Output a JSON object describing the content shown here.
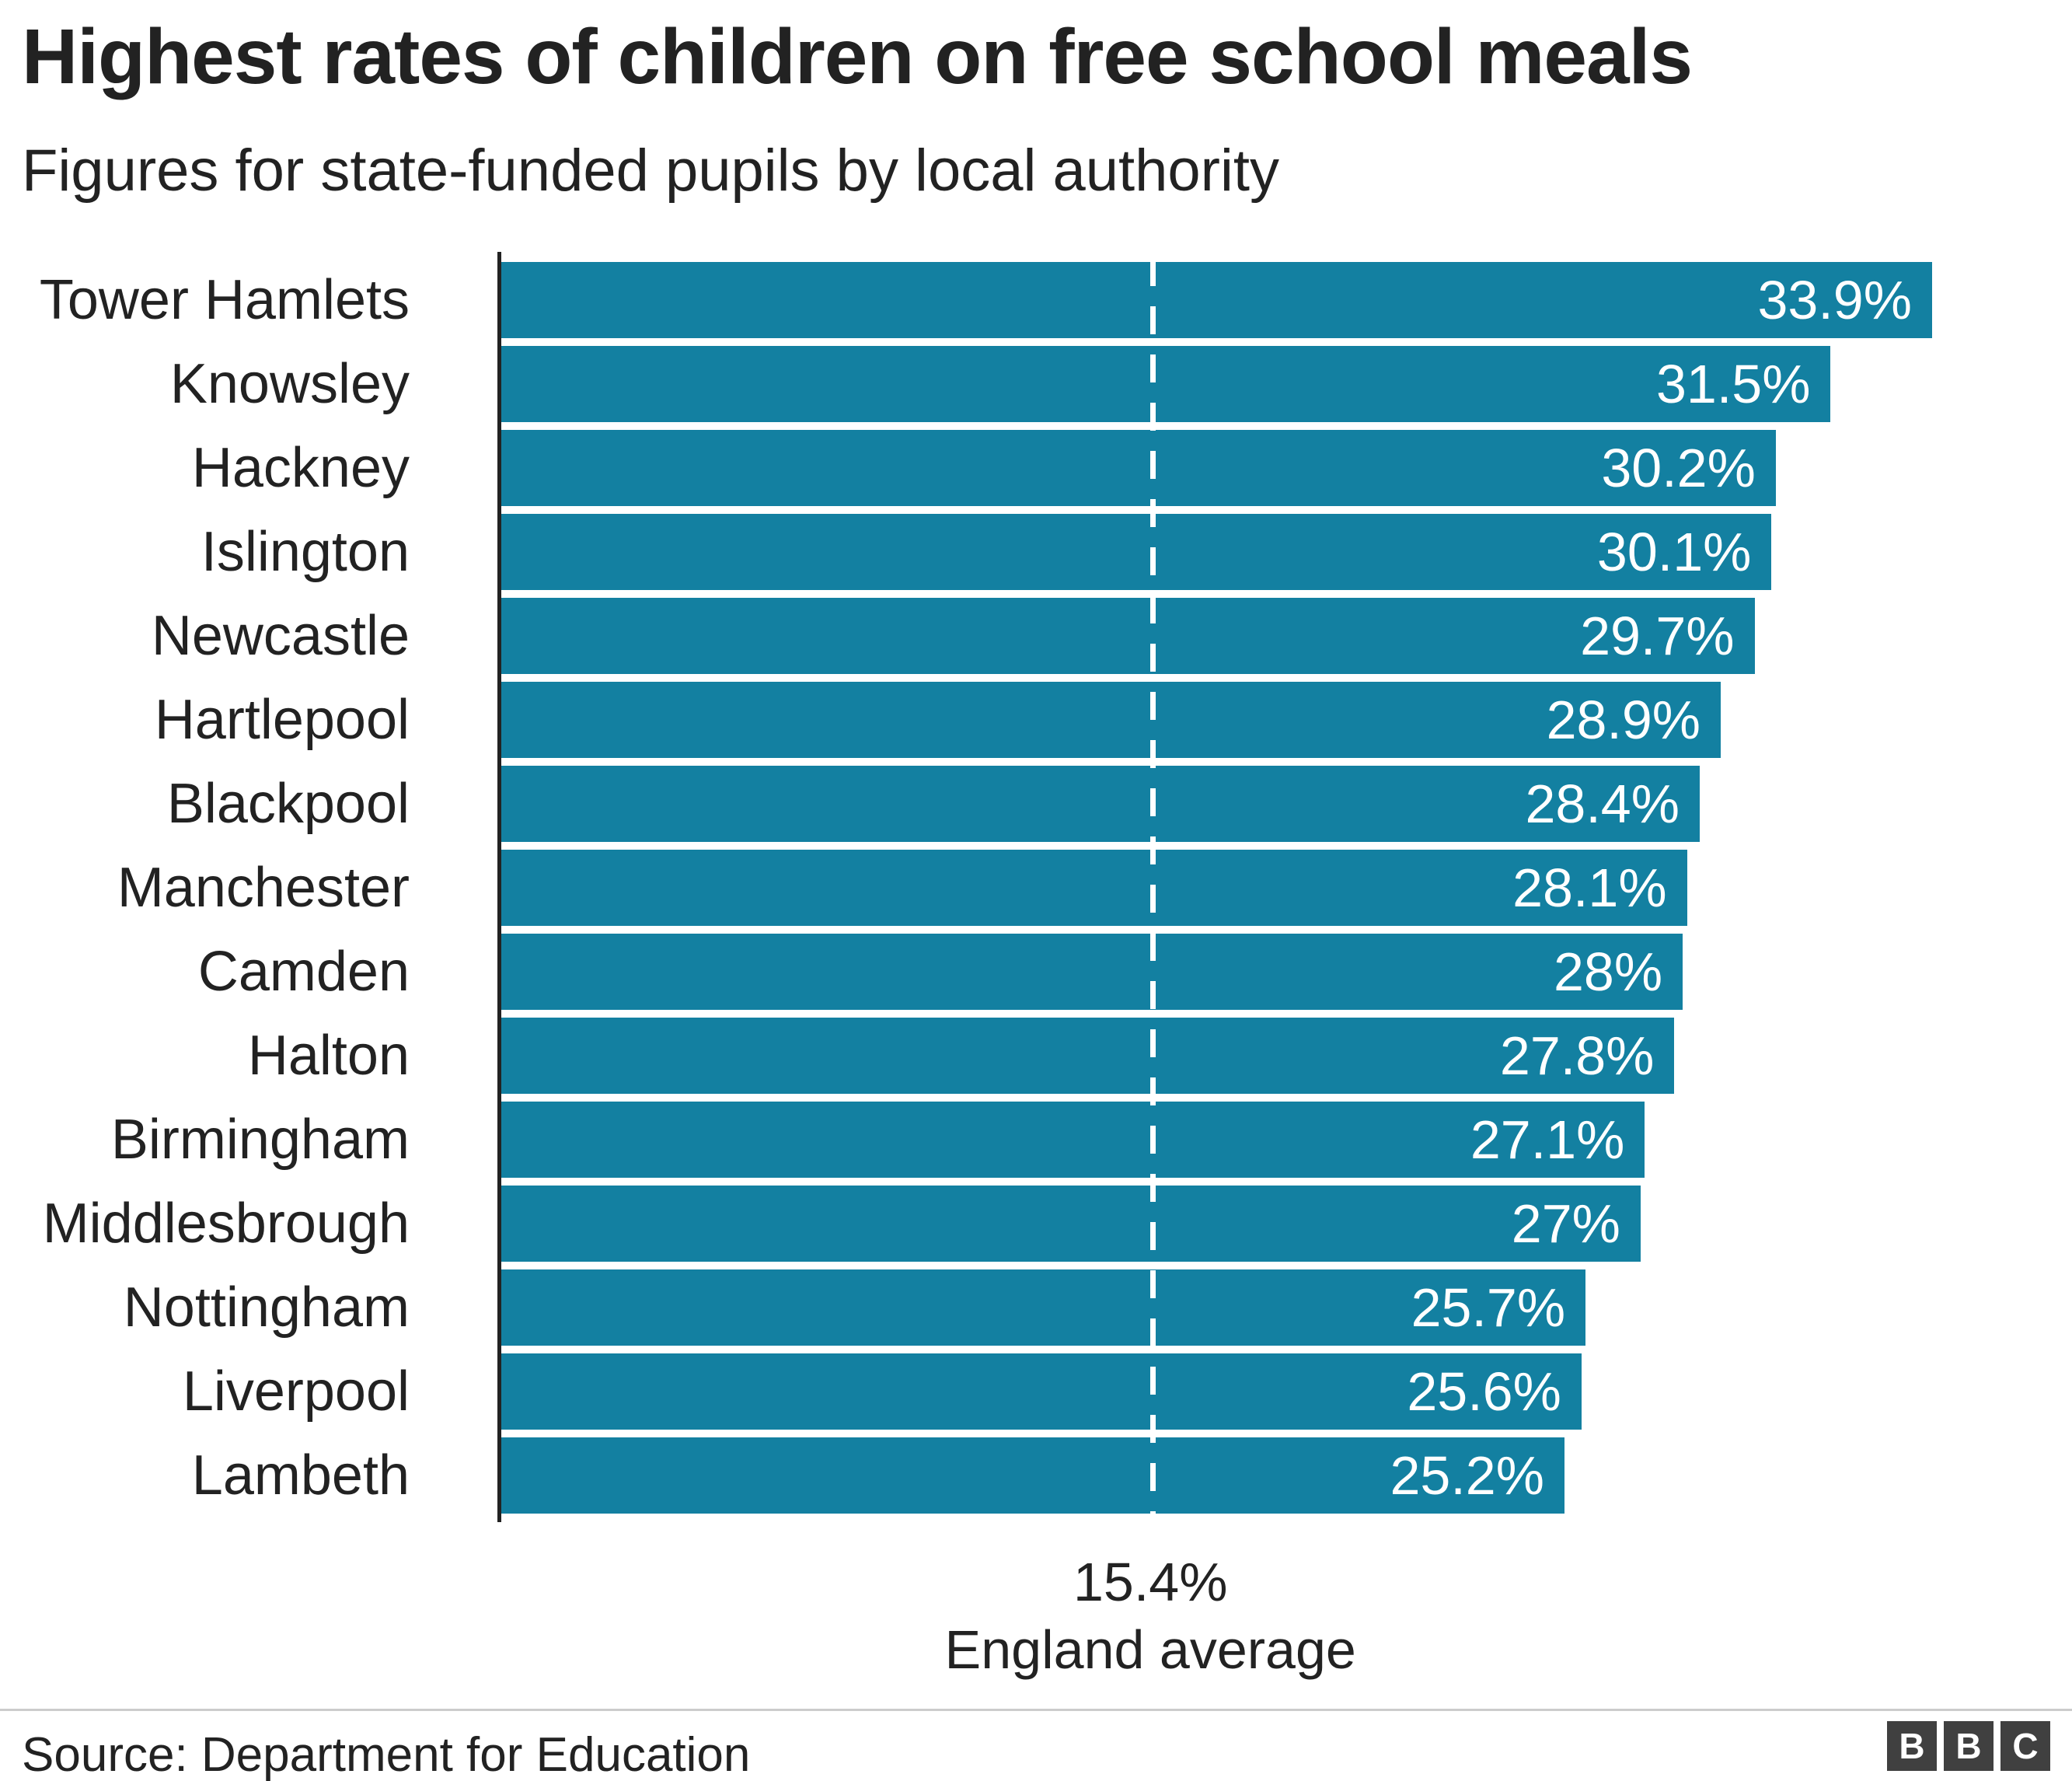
{
  "header": {
    "title": "Highest rates of children on free school meals",
    "subtitle": "Figures for state-funded pupils by local authority"
  },
  "chart_data": {
    "type": "bar",
    "orientation": "horizontal",
    "title": "Highest rates of children on free school meals",
    "subtitle": "Figures for state-funded pupils by local authority",
    "categories": [
      "Tower Hamlets",
      "Knowsley",
      "Hackney",
      "Islington",
      "Newcastle",
      "Hartlepool",
      "Blackpool",
      "Manchester",
      "Camden",
      "Halton",
      "Birmingham",
      "Middlesbrough",
      "Nottingham",
      "Liverpool",
      "Lambeth"
    ],
    "values": [
      33.9,
      31.5,
      30.2,
      30.1,
      29.7,
      28.9,
      28.4,
      28.1,
      28,
      27.8,
      27.1,
      27,
      25.7,
      25.6,
      25.2
    ],
    "value_labels": [
      "33.9%",
      "31.5%",
      "30.2%",
      "30.1%",
      "29.7%",
      "28.9%",
      "28.4%",
      "28.1%",
      "28%",
      "27.8%",
      "27.1%",
      "27%",
      "25.7%",
      "25.6%",
      "25.2%"
    ],
    "xlabel": "",
    "ylabel": "",
    "xlim": [
      0,
      37
    ],
    "grid": false,
    "legend": false,
    "bar_color": "#1380a1",
    "average_line": {
      "value": 15.4,
      "value_label": "15.4%",
      "label": "England average"
    }
  },
  "footer": {
    "source": "Source: Department for Education",
    "logo_letters": [
      "B",
      "B",
      "C"
    ]
  }
}
